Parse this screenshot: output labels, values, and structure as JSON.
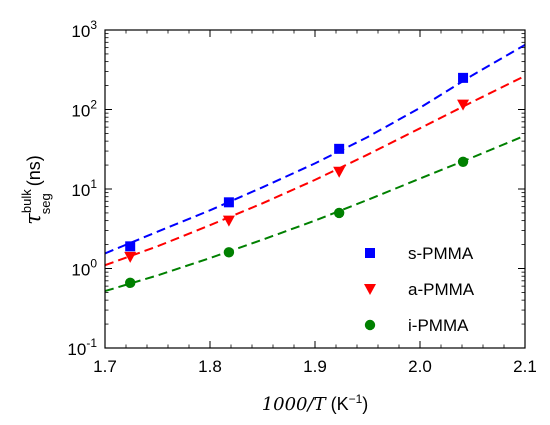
{
  "chart_data": {
    "type": "scatter",
    "xlabel": {
      "prefix": "1000/",
      "var": "T",
      "unit_base": "(K",
      "unit_exp": "−1",
      "unit_close": ")"
    },
    "ylabel": {
      "symbol": "τ",
      "sup": "bulk",
      "sub": "seg",
      "unit": "(ns)"
    },
    "xlim": [
      1.7,
      2.1
    ],
    "ylim": [
      0.1,
      1000
    ],
    "yscale": "log",
    "grid": false,
    "legend_position": "bottom-right",
    "x_ticks": [
      {
        "value": 1.7,
        "label": "1.7"
      },
      {
        "value": 1.8,
        "label": "1.8"
      },
      {
        "value": 1.9,
        "label": "1.9"
      },
      {
        "value": 2.0,
        "label": "2.0"
      },
      {
        "value": 2.1,
        "label": "2.1"
      }
    ],
    "y_ticks": [
      {
        "value": 0.1,
        "base": "10",
        "exp": "-1"
      },
      {
        "value": 1,
        "base": "10",
        "exp": "0"
      },
      {
        "value": 10,
        "base": "10",
        "exp": "1"
      },
      {
        "value": 100,
        "base": "10",
        "exp": "2"
      },
      {
        "value": 1000,
        "base": "10",
        "exp": "3"
      }
    ],
    "series": [
      {
        "name": "s-PMMA",
        "marker": "square",
        "color": "#0000ff",
        "x": [
          1.724,
          1.818,
          1.923,
          2.041
        ],
        "y": [
          1.9,
          6.8,
          32,
          250
        ],
        "fit_x": [
          1.7,
          1.75,
          1.8,
          1.85,
          1.9,
          1.95,
          2.0,
          2.05,
          2.1
        ],
        "fit_y": [
          1.55,
          2.9,
          5.4,
          10.5,
          21,
          45,
          105,
          270,
          650
        ]
      },
      {
        "name": "a-PMMA",
        "marker": "triangle-down",
        "color": "#ff0000",
        "x": [
          1.724,
          1.818,
          1.923,
          2.041
        ],
        "y": [
          1.4,
          4.0,
          16.5,
          115
        ],
        "fit_x": [
          1.7,
          1.75,
          1.8,
          1.85,
          1.9,
          1.95,
          2.0,
          2.05,
          2.1
        ],
        "fit_y": [
          1.1,
          1.9,
          3.5,
          6.6,
          13,
          27,
          58,
          125,
          265
        ]
      },
      {
        "name": "i-PMMA",
        "marker": "circle",
        "color": "#008000",
        "x": [
          1.724,
          1.818,
          1.923,
          2.041
        ],
        "y": [
          0.66,
          1.6,
          5.0,
          22
        ],
        "fit_x": [
          1.7,
          1.75,
          1.8,
          1.85,
          1.9,
          1.95,
          2.0,
          2.05,
          2.1
        ],
        "fit_y": [
          0.52,
          0.82,
          1.35,
          2.3,
          4.0,
          7.3,
          13.5,
          25,
          47
        ]
      }
    ]
  }
}
